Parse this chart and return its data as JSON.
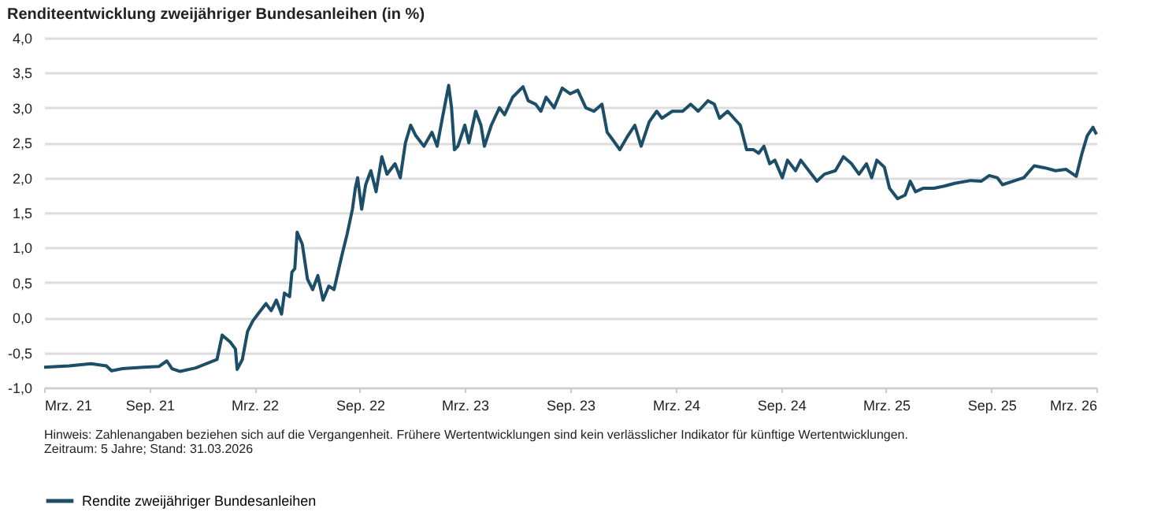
{
  "chart_data": {
    "type": "line",
    "title": "Renditeentwicklung zweijähriger Bundesanleihen (in %)",
    "annotations": [
      "Hinweis: Zahlenangaben beziehen sich auf die Vergangenheit. Frühere Wertentwicklungen sind kein verlässlicher Indikator für künftige Wertentwicklungen.",
      "Zeitraum: 5 Jahre; Stand: 31.03.2026"
    ],
    "x": [
      "2021-03-31",
      "2021-05-14",
      "2021-06-20",
      "2021-07-17",
      "2021-07-26",
      "2021-08-14",
      "2021-09-19",
      "2021-10-16",
      "2021-10-30",
      "2021-11-08",
      "2021-11-22",
      "2021-12-19",
      "2022-01-06",
      "2022-01-25",
      "2022-02-03",
      "2022-02-17",
      "2022-02-26",
      "2022-03-01",
      "2022-03-10",
      "2022-03-19",
      "2022-03-28",
      "2022-04-06",
      "2022-04-20",
      "2022-04-29",
      "2022-05-08",
      "2022-05-17",
      "2022-05-22",
      "2022-05-31",
      "2022-06-04",
      "2022-06-09",
      "2022-06-13",
      "2022-06-22",
      "2022-07-01",
      "2022-07-10",
      "2022-07-19",
      "2022-07-28",
      "2022-08-07",
      "2022-08-16",
      "2022-08-30",
      "2022-09-08",
      "2022-09-17",
      "2022-09-22",
      "2022-09-26",
      "2022-10-03",
      "2022-10-10",
      "2022-10-19",
      "2022-10-28",
      "2022-11-07",
      "2022-11-16",
      "2022-11-30",
      "2022-12-09",
      "2022-12-18",
      "2022-12-27",
      "2023-01-05",
      "2023-01-19",
      "2023-02-02",
      "2023-02-11",
      "2023-02-20",
      "2023-03-03",
      "2023-03-08",
      "2023-03-13",
      "2023-03-19",
      "2023-03-31",
      "2023-04-07",
      "2023-04-19",
      "2023-04-28",
      "2023-05-04",
      "2023-05-16",
      "2023-05-30",
      "2023-06-08",
      "2023-06-22",
      "2023-07-10",
      "2023-07-19",
      "2023-08-01",
      "2023-08-10",
      "2023-08-19",
      "2023-09-02",
      "2023-09-16",
      "2023-09-30",
      "2023-10-13",
      "2023-10-27",
      "2023-11-10",
      "2023-11-24",
      "2023-12-03",
      "2023-12-12",
      "2023-12-25",
      "2024-01-08",
      "2024-01-20",
      "2024-01-31",
      "2024-02-14",
      "2024-02-27",
      "2024-03-07",
      "2024-03-25",
      "2024-04-12",
      "2024-04-26",
      "2024-05-09",
      "2024-05-26",
      "2024-06-06",
      "2024-06-15",
      "2024-06-29",
      "2024-07-21",
      "2024-08-01",
      "2024-08-13",
      "2024-08-22",
      "2024-08-31",
      "2024-09-10",
      "2024-09-19",
      "2024-10-02",
      "2024-10-11",
      "2024-10-25",
      "2024-11-03",
      "2024-11-17",
      "2024-12-01",
      "2024-12-14",
      "2025-01-02",
      "2025-01-16",
      "2025-01-30",
      "2025-02-12",
      "2025-02-25",
      "2025-03-06",
      "2025-03-15",
      "2025-03-28",
      "2025-04-06",
      "2025-04-20",
      "2025-05-03",
      "2025-05-12",
      "2025-05-21",
      "2025-06-04",
      "2025-06-22",
      "2025-07-10",
      "2025-07-28",
      "2025-08-25",
      "2025-09-12",
      "2025-09-26",
      "2025-10-10",
      "2025-10-19",
      "2025-11-06",
      "2025-11-25",
      "2025-12-13",
      "2026-01-01",
      "2026-01-19",
      "2026-02-06",
      "2026-02-24",
      "2026-03-06",
      "2026-03-15",
      "2026-03-25",
      "2026-03-31"
    ],
    "series": [
      {
        "name": "Rendite zweijähriger Bundesanleihen",
        "color": "#1d4e68",
        "values": [
          -0.71,
          -0.69,
          -0.66,
          -0.69,
          -0.76,
          -0.73,
          -0.71,
          -0.7,
          -0.62,
          -0.73,
          -0.77,
          -0.72,
          -0.66,
          -0.6,
          -0.25,
          -0.35,
          -0.45,
          -0.74,
          -0.6,
          -0.2,
          -0.05,
          0.05,
          0.2,
          0.1,
          0.25,
          0.05,
          0.35,
          0.3,
          0.65,
          0.7,
          1.22,
          1.05,
          0.55,
          0.4,
          0.6,
          0.25,
          0.45,
          0.4,
          0.9,
          1.2,
          1.55,
          1.85,
          2.0,
          1.55,
          1.9,
          2.1,
          1.8,
          2.3,
          2.05,
          2.2,
          2.0,
          2.5,
          2.75,
          2.6,
          2.45,
          2.65,
          2.45,
          2.85,
          3.32,
          3.0,
          2.4,
          2.45,
          2.75,
          2.5,
          2.95,
          2.75,
          2.45,
          2.75,
          3.0,
          2.9,
          3.15,
          3.3,
          3.1,
          3.05,
          2.95,
          3.15,
          3.0,
          3.28,
          3.2,
          3.25,
          3.0,
          2.95,
          3.05,
          2.65,
          2.55,
          2.4,
          2.6,
          2.75,
          2.45,
          2.8,
          2.95,
          2.85,
          2.95,
          2.95,
          3.05,
          2.95,
          3.1,
          3.05,
          2.85,
          2.95,
          2.75,
          2.4,
          2.4,
          2.35,
          2.45,
          2.2,
          2.25,
          2.0,
          2.25,
          2.1,
          2.25,
          2.1,
          1.95,
          2.05,
          2.1,
          2.3,
          2.2,
          2.05,
          2.2,
          2.0,
          2.25,
          2.15,
          1.85,
          1.7,
          1.75,
          1.95,
          1.8,
          1.85,
          1.85,
          1.88,
          1.92,
          1.96,
          1.95,
          2.03,
          2.0,
          1.9,
          1.95,
          2.0,
          2.17,
          2.14,
          2.1,
          2.12,
          2.02,
          2.35,
          2.6,
          2.72,
          2.62
        ]
      }
    ],
    "xlim": [
      "2021-03-31",
      "2026-03-31"
    ],
    "xticks": [
      {
        "value": "2021-03-31",
        "label": "Mrz. 21"
      },
      {
        "value": "2021-09-30",
        "label": "Sep. 21"
      },
      {
        "value": "2022-03-31",
        "label": "Mrz. 22"
      },
      {
        "value": "2022-09-30",
        "label": "Sep. 22"
      },
      {
        "value": "2023-03-31",
        "label": "Mrz. 23"
      },
      {
        "value": "2023-09-30",
        "label": "Sep. 23"
      },
      {
        "value": "2024-03-31",
        "label": "Mrz. 24"
      },
      {
        "value": "2024-09-30",
        "label": "Sep. 24"
      },
      {
        "value": "2025-03-31",
        "label": "Mrz. 25"
      },
      {
        "value": "2025-09-30",
        "label": "Sep. 25"
      },
      {
        "value": "2026-03-31",
        "label": "Mrz. 26"
      }
    ],
    "ylim": [
      -1,
      4
    ],
    "yticks": [
      {
        "value": -1,
        "label": "-1,0"
      },
      {
        "value": -0.5,
        "label": "-0,5"
      },
      {
        "value": 0,
        "label": "0,0"
      },
      {
        "value": 0.5,
        "label": "0,5"
      },
      {
        "value": 1,
        "label": "1,0"
      },
      {
        "value": 1.5,
        "label": "1,5"
      },
      {
        "value": 2,
        "label": "2,0"
      },
      {
        "value": 2.5,
        "label": "2,5"
      },
      {
        "value": 3,
        "label": "3,0"
      },
      {
        "value": 3.5,
        "label": "3,5"
      },
      {
        "value": 4,
        "label": "4,0"
      }
    ],
    "grid": "y",
    "legend": "bottom",
    "marker": "none",
    "line_style": "solid"
  }
}
